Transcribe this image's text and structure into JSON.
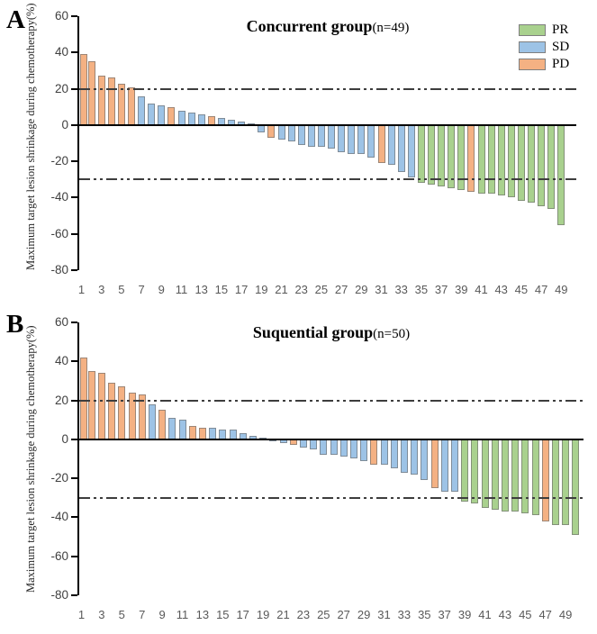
{
  "panels": [
    {
      "letter": "A"
    },
    {
      "letter": "B"
    }
  ],
  "legend": {
    "items": [
      {
        "label": "PR",
        "color": "#a9d18e"
      },
      {
        "label": "SD",
        "color": "#9dc3e6"
      },
      {
        "label": "PD",
        "color": "#f4b183"
      }
    ]
  },
  "chart_data": [
    {
      "type": "bar",
      "title": "Concurrent group(n=49)",
      "title_main": "Concurrent group",
      "title_suffix": "(n=49)",
      "ylabel": "Maximum target lesion shrinkage during chemotherapy(%)",
      "ylim": [
        -80,
        60
      ],
      "yticks": [
        60,
        40,
        20,
        0,
        -20,
        -40,
        -60,
        -80
      ],
      "reference_lines": [
        20,
        -30
      ],
      "grid": false,
      "legend_position": "top-right",
      "x_tick_labels": [
        1,
        3,
        5,
        7,
        9,
        11,
        13,
        15,
        17,
        19,
        21,
        23,
        25,
        27,
        29,
        31,
        33,
        35,
        37,
        39,
        41,
        43,
        45,
        47,
        49
      ],
      "bars": [
        {
          "n": 1,
          "value": 39,
          "response": "PD"
        },
        {
          "n": 2,
          "value": 35,
          "response": "PD"
        },
        {
          "n": 3,
          "value": 27,
          "response": "PD"
        },
        {
          "n": 4,
          "value": 26,
          "response": "PD"
        },
        {
          "n": 5,
          "value": 23,
          "response": "PD"
        },
        {
          "n": 6,
          "value": 21,
          "response": "PD"
        },
        {
          "n": 7,
          "value": 16,
          "response": "SD"
        },
        {
          "n": 8,
          "value": 12,
          "response": "SD"
        },
        {
          "n": 9,
          "value": 11,
          "response": "SD"
        },
        {
          "n": 10,
          "value": 10,
          "response": "PD"
        },
        {
          "n": 11,
          "value": 8,
          "response": "SD"
        },
        {
          "n": 12,
          "value": 7,
          "response": "SD"
        },
        {
          "n": 13,
          "value": 6,
          "response": "SD"
        },
        {
          "n": 14,
          "value": 5,
          "response": "PD"
        },
        {
          "n": 15,
          "value": 4,
          "response": "SD"
        },
        {
          "n": 16,
          "value": 3,
          "response": "SD"
        },
        {
          "n": 17,
          "value": 2,
          "response": "SD"
        },
        {
          "n": 18,
          "value": 1,
          "response": "SD"
        },
        {
          "n": 19,
          "value": -4,
          "response": "SD"
        },
        {
          "n": 20,
          "value": -7,
          "response": "PD"
        },
        {
          "n": 21,
          "value": -8,
          "response": "SD"
        },
        {
          "n": 22,
          "value": -9,
          "response": "SD"
        },
        {
          "n": 23,
          "value": -11,
          "response": "SD"
        },
        {
          "n": 24,
          "value": -12,
          "response": "SD"
        },
        {
          "n": 25,
          "value": -12,
          "response": "SD"
        },
        {
          "n": 26,
          "value": -13,
          "response": "SD"
        },
        {
          "n": 27,
          "value": -15,
          "response": "SD"
        },
        {
          "n": 28,
          "value": -16,
          "response": "SD"
        },
        {
          "n": 29,
          "value": -16,
          "response": "SD"
        },
        {
          "n": 30,
          "value": -18,
          "response": "SD"
        },
        {
          "n": 31,
          "value": -21,
          "response": "PD"
        },
        {
          "n": 32,
          "value": -22,
          "response": "SD"
        },
        {
          "n": 33,
          "value": -26,
          "response": "SD"
        },
        {
          "n": 34,
          "value": -29,
          "response": "SD"
        },
        {
          "n": 35,
          "value": -32,
          "response": "PR"
        },
        {
          "n": 36,
          "value": -33,
          "response": "PR"
        },
        {
          "n": 37,
          "value": -34,
          "response": "PR"
        },
        {
          "n": 38,
          "value": -35,
          "response": "PR"
        },
        {
          "n": 39,
          "value": -36,
          "response": "PR"
        },
        {
          "n": 40,
          "value": -37,
          "response": "PD"
        },
        {
          "n": 41,
          "value": -38,
          "response": "PR"
        },
        {
          "n": 42,
          "value": -38,
          "response": "PR"
        },
        {
          "n": 43,
          "value": -39,
          "response": "PR"
        },
        {
          "n": 44,
          "value": -40,
          "response": "PR"
        },
        {
          "n": 45,
          "value": -42,
          "response": "PR"
        },
        {
          "n": 46,
          "value": -43,
          "response": "PR"
        },
        {
          "n": 47,
          "value": -45,
          "response": "PR"
        },
        {
          "n": 48,
          "value": -46,
          "response": "PR"
        },
        {
          "n": 49,
          "value": -55,
          "response": "PR"
        }
      ]
    },
    {
      "type": "bar",
      "title": "Suquential group(n=50)",
      "title_main": "Suquential group",
      "title_suffix": "(n=50)",
      "ylabel": "Maximum target lesion shrinkage during chemotherapy(%)",
      "ylim": [
        -80,
        60
      ],
      "yticks": [
        60,
        40,
        20,
        0,
        -20,
        -40,
        -60,
        -80
      ],
      "reference_lines": [
        20,
        -30
      ],
      "grid": false,
      "x_tick_labels": [
        1,
        3,
        5,
        7,
        9,
        11,
        13,
        15,
        17,
        19,
        21,
        23,
        25,
        27,
        29,
        31,
        33,
        35,
        37,
        39,
        41,
        43,
        45,
        47,
        49
      ],
      "bars": [
        {
          "n": 1,
          "value": 42,
          "response": "PD"
        },
        {
          "n": 2,
          "value": 35,
          "response": "PD"
        },
        {
          "n": 3,
          "value": 34,
          "response": "PD"
        },
        {
          "n": 4,
          "value": 29,
          "response": "PD"
        },
        {
          "n": 5,
          "value": 27,
          "response": "PD"
        },
        {
          "n": 6,
          "value": 24,
          "response": "PD"
        },
        {
          "n": 7,
          "value": 23,
          "response": "PD"
        },
        {
          "n": 8,
          "value": 18,
          "response": "SD"
        },
        {
          "n": 9,
          "value": 15,
          "response": "PD"
        },
        {
          "n": 10,
          "value": 11,
          "response": "SD"
        },
        {
          "n": 11,
          "value": 10,
          "response": "SD"
        },
        {
          "n": 12,
          "value": 7,
          "response": "PD"
        },
        {
          "n": 13,
          "value": 6,
          "response": "PD"
        },
        {
          "n": 14,
          "value": 6,
          "response": "SD"
        },
        {
          "n": 15,
          "value": 5,
          "response": "SD"
        },
        {
          "n": 16,
          "value": 5,
          "response": "SD"
        },
        {
          "n": 17,
          "value": 3,
          "response": "SD"
        },
        {
          "n": 18,
          "value": 2,
          "response": "SD"
        },
        {
          "n": 19,
          "value": 1,
          "response": "SD"
        },
        {
          "n": 20,
          "value": -1,
          "response": "SD"
        },
        {
          "n": 21,
          "value": -2,
          "response": "SD"
        },
        {
          "n": 22,
          "value": -3,
          "response": "PD"
        },
        {
          "n": 23,
          "value": -4,
          "response": "SD"
        },
        {
          "n": 24,
          "value": -5,
          "response": "SD"
        },
        {
          "n": 25,
          "value": -8,
          "response": "SD"
        },
        {
          "n": 26,
          "value": -8,
          "response": "SD"
        },
        {
          "n": 27,
          "value": -9,
          "response": "SD"
        },
        {
          "n": 28,
          "value": -10,
          "response": "SD"
        },
        {
          "n": 29,
          "value": -11,
          "response": "SD"
        },
        {
          "n": 30,
          "value": -13,
          "response": "PD"
        },
        {
          "n": 31,
          "value": -13,
          "response": "SD"
        },
        {
          "n": 32,
          "value": -15,
          "response": "SD"
        },
        {
          "n": 33,
          "value": -17,
          "response": "SD"
        },
        {
          "n": 34,
          "value": -18,
          "response": "SD"
        },
        {
          "n": 35,
          "value": -21,
          "response": "SD"
        },
        {
          "n": 36,
          "value": -25,
          "response": "PD"
        },
        {
          "n": 37,
          "value": -27,
          "response": "SD"
        },
        {
          "n": 38,
          "value": -27,
          "response": "SD"
        },
        {
          "n": 39,
          "value": -32,
          "response": "PR"
        },
        {
          "n": 40,
          "value": -33,
          "response": "PR"
        },
        {
          "n": 41,
          "value": -35,
          "response": "PR"
        },
        {
          "n": 42,
          "value": -36,
          "response": "PR"
        },
        {
          "n": 43,
          "value": -37,
          "response": "PR"
        },
        {
          "n": 44,
          "value": -37,
          "response": "PR"
        },
        {
          "n": 45,
          "value": -38,
          "response": "PR"
        },
        {
          "n": 46,
          "value": -39,
          "response": "PR"
        },
        {
          "n": 47,
          "value": -42,
          "response": "PD"
        },
        {
          "n": 48,
          "value": -44,
          "response": "PR"
        },
        {
          "n": 49,
          "value": -44,
          "response": "PR"
        },
        {
          "n": 50,
          "value": -49,
          "response": "PR"
        }
      ]
    }
  ]
}
